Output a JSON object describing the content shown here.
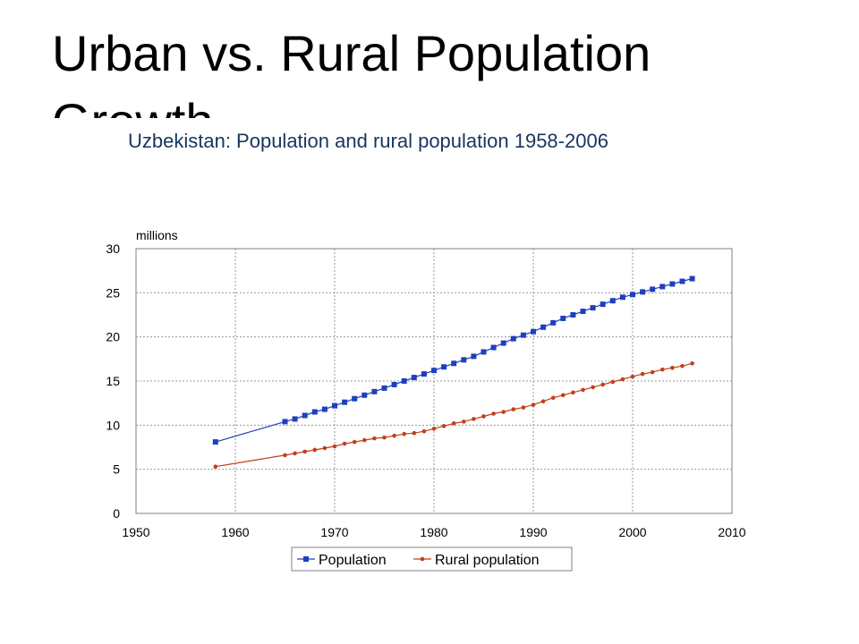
{
  "slide": {
    "title": "Urban vs. Rural Population Growth"
  },
  "chart_data": {
    "type": "line",
    "title": "Uzbekistan: Population and rural population 1958-2006",
    "ylabel": "millions",
    "xlabel": "",
    "xlim": [
      1950,
      2010
    ],
    "ylim": [
      0,
      30
    ],
    "x_ticks": [
      1950,
      1960,
      1970,
      1980,
      1990,
      2000,
      2010
    ],
    "y_ticks": [
      0,
      5,
      10,
      15,
      20,
      25,
      30
    ],
    "grid": true,
    "legend_position": "bottom",
    "series": [
      {
        "name": "Population",
        "color": "#1f3fbf",
        "marker": "square",
        "x": [
          1958,
          1965,
          1966,
          1967,
          1968,
          1969,
          1970,
          1971,
          1972,
          1973,
          1974,
          1975,
          1976,
          1977,
          1978,
          1979,
          1980,
          1981,
          1982,
          1983,
          1984,
          1985,
          1986,
          1987,
          1988,
          1989,
          1990,
          1991,
          1992,
          1993,
          1994,
          1995,
          1996,
          1997,
          1998,
          1999,
          2000,
          2001,
          2002,
          2003,
          2004,
          2005,
          2006
        ],
        "y": [
          8.1,
          10.4,
          10.7,
          11.1,
          11.5,
          11.8,
          12.2,
          12.6,
          13.0,
          13.4,
          13.8,
          14.2,
          14.6,
          15.0,
          15.4,
          15.8,
          16.2,
          16.6,
          17.0,
          17.4,
          17.8,
          18.3,
          18.8,
          19.3,
          19.8,
          20.2,
          20.6,
          21.1,
          21.6,
          22.1,
          22.5,
          22.9,
          23.3,
          23.7,
          24.1,
          24.5,
          24.8,
          25.1,
          25.4,
          25.7,
          26.0,
          26.3,
          26.6
        ]
      },
      {
        "name": "Rural population",
        "color": "#c0401a",
        "marker": "circle",
        "x": [
          1958,
          1965,
          1966,
          1967,
          1968,
          1969,
          1970,
          1971,
          1972,
          1973,
          1974,
          1975,
          1976,
          1977,
          1978,
          1979,
          1980,
          1981,
          1982,
          1983,
          1984,
          1985,
          1986,
          1987,
          1988,
          1989,
          1990,
          1991,
          1992,
          1993,
          1994,
          1995,
          1996,
          1997,
          1998,
          1999,
          2000,
          2001,
          2002,
          2003,
          2004,
          2005,
          2006
        ],
        "y": [
          5.3,
          6.6,
          6.8,
          7.0,
          7.2,
          7.4,
          7.6,
          7.9,
          8.1,
          8.3,
          8.5,
          8.6,
          8.8,
          9.0,
          9.1,
          9.3,
          9.6,
          9.9,
          10.2,
          10.4,
          10.7,
          11.0,
          11.3,
          11.5,
          11.8,
          12.0,
          12.3,
          12.7,
          13.1,
          13.4,
          13.7,
          14.0,
          14.3,
          14.6,
          14.9,
          15.2,
          15.5,
          15.8,
          16.0,
          16.3,
          16.5,
          16.7,
          17.0
        ]
      }
    ]
  }
}
